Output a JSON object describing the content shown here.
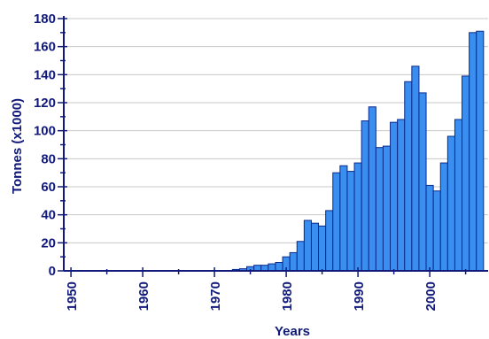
{
  "chart_data": {
    "type": "bar",
    "xlabel": "Years",
    "ylabel": "Tonnes (x1000)",
    "ylim": [
      0,
      180
    ],
    "y_ticks": [
      0,
      20,
      40,
      60,
      80,
      100,
      120,
      140,
      160,
      180
    ],
    "x_tick_labels": [
      "1950",
      "1960",
      "1970",
      "1980",
      "1990",
      "2000"
    ],
    "grid": "horizontal",
    "bar_color": "#3a8ef0",
    "bar_edge_color": "#0a2a8a",
    "axis_color": "#111a7a",
    "grid_color": "#c8c8c8",
    "categories": [
      1973,
      1974,
      1975,
      1976,
      1977,
      1978,
      1979,
      1980,
      1981,
      1982,
      1983,
      1984,
      1985,
      1986,
      1987,
      1988,
      1989,
      1990,
      1991,
      1992,
      1993,
      1994,
      1995,
      1996,
      1997,
      1998,
      1999,
      2000,
      2001,
      2002,
      2003,
      2004,
      2005,
      2006,
      2007
    ],
    "values": [
      1,
      1.5,
      3,
      4,
      4,
      5,
      6,
      10,
      13,
      21,
      36,
      34,
      32,
      43,
      70,
      75,
      71,
      77,
      107,
      117,
      88,
      89,
      106,
      108,
      135,
      146,
      127,
      61,
      57,
      77,
      96,
      108,
      139,
      170,
      171
    ]
  }
}
